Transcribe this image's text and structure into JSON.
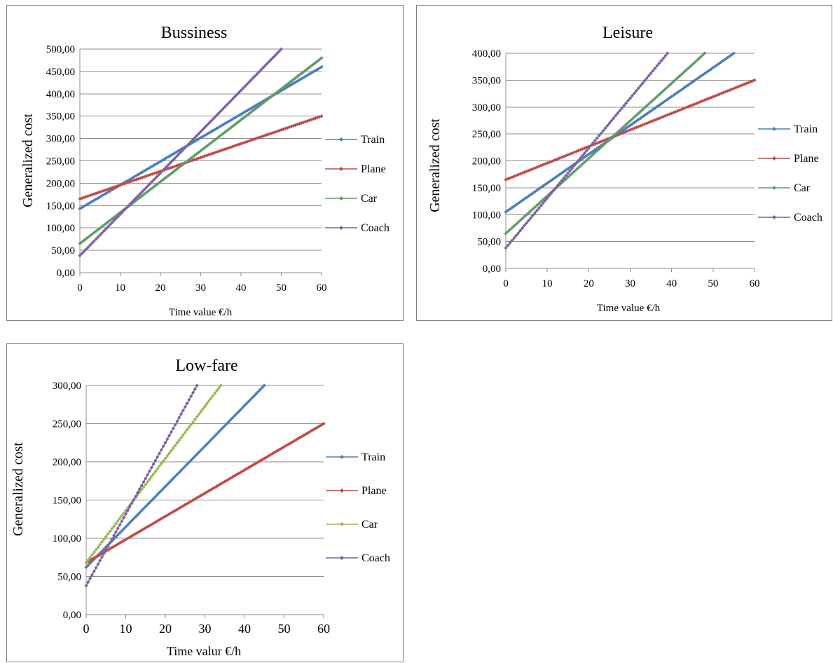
{
  "colors": {
    "Train": "#4a7ebb",
    "Plane": "#be4b48",
    "Car_green": "#5f9b6a",
    "Car_lime": "#98b954",
    "Coach": "#7d60a0"
  },
  "chart_data": [
    {
      "type": "line",
      "title": "Bussiness",
      "xlabel": "Time value €/h",
      "ylabel": "Generalized cost",
      "xlim": [
        0,
        60
      ],
      "ylim": [
        0,
        500
      ],
      "xticks": [
        0,
        10,
        20,
        30,
        40,
        50,
        60
      ],
      "xtick_labels": [
        "0",
        "10",
        "20",
        "30",
        "40",
        "50",
        "60"
      ],
      "yticks": [
        0,
        50,
        100,
        150,
        200,
        250,
        300,
        350,
        400,
        450,
        500
      ],
      "ytick_labels": [
        "0,00",
        "50,00",
        "100,00",
        "150,00",
        "200,00",
        "250,00",
        "300,00",
        "350,00",
        "400,00",
        "450,00",
        "500,00"
      ],
      "grid": true,
      "legend_position": "right",
      "series": [
        {
          "name": "Train",
          "color": "#4a7ebb",
          "x_start": 0,
          "x_end": 60,
          "y_start": 143,
          "y_end": 460
        },
        {
          "name": "Plane",
          "color": "#be4b48",
          "x_start": 0,
          "x_end": 60,
          "y_start": 165,
          "y_end": 350
        },
        {
          "name": "Car",
          "color": "#5f9b6a",
          "x_start": 0,
          "x_end": 60,
          "y_start": 65,
          "y_end": 480
        },
        {
          "name": "Coach",
          "color": "#7d60a0",
          "x_start": 0,
          "x_end": 50,
          "y_start": 38,
          "y_end": 500
        }
      ]
    },
    {
      "type": "line",
      "title": "Leisure",
      "xlabel": "Time value €/h",
      "ylabel": "Generalized cost",
      "xlim": [
        0,
        60
      ],
      "ylim": [
        0,
        400
      ],
      "xticks": [
        0,
        10,
        20,
        30,
        40,
        50,
        60
      ],
      "xtick_labels": [
        "0",
        "10",
        "20",
        "30",
        "40",
        "50",
        "60"
      ],
      "yticks": [
        0,
        50,
        100,
        150,
        200,
        250,
        300,
        350,
        400
      ],
      "ytick_labels": [
        "0,00",
        "50,00",
        "100,00",
        "150,00",
        "200,00",
        "250,00",
        "300,00",
        "350,00",
        "400,00"
      ],
      "grid": true,
      "legend_position": "right",
      "series": [
        {
          "name": "Train",
          "color": "#4a7ebb",
          "x_start": 0,
          "x_end": 55,
          "y_start": 105,
          "y_end": 400
        },
        {
          "name": "Plane",
          "color": "#be4b48",
          "x_start": 0,
          "x_end": 60,
          "y_start": 165,
          "y_end": 350
        },
        {
          "name": "Car",
          "color": "#5f9b6a",
          "x_start": 0,
          "x_end": 48,
          "y_start": 65,
          "y_end": 400
        },
        {
          "name": "Coach",
          "color": "#7d60a0",
          "x_start": 0,
          "x_end": 39,
          "y_start": 38,
          "y_end": 400
        }
      ]
    },
    {
      "type": "line",
      "title": "Low-fare",
      "xlabel": "Time valur €/h",
      "ylabel": "Generalized cost",
      "xlim": [
        0,
        60
      ],
      "ylim": [
        0,
        300
      ],
      "xticks": [
        0,
        10,
        20,
        30,
        40,
        50,
        60
      ],
      "xtick_labels": [
        "0",
        "10",
        "20",
        "30",
        "40",
        "50",
        "60"
      ],
      "yticks": [
        0,
        50,
        100,
        150,
        200,
        250,
        300
      ],
      "ytick_labels": [
        "0,00",
        "50,00",
        "100,00",
        "150,00",
        "200,00",
        "250,00",
        "300,00"
      ],
      "grid": true,
      "legend_position": "right",
      "series": [
        {
          "name": "Train",
          "color": "#4a7ebb",
          "x_start": 0,
          "x_end": 45,
          "y_start": 62,
          "y_end": 300
        },
        {
          "name": "Plane",
          "color": "#be4b48",
          "x_start": 0,
          "x_end": 60,
          "y_start": 68,
          "y_end": 250
        },
        {
          "name": "Car",
          "color": "#98b954",
          "x_start": 0,
          "x_end": 34,
          "y_start": 68,
          "y_end": 300
        },
        {
          "name": "Coach",
          "color": "#7d60a0",
          "x_start": 0,
          "x_end": 28,
          "y_start": 38,
          "y_end": 300
        }
      ]
    }
  ]
}
